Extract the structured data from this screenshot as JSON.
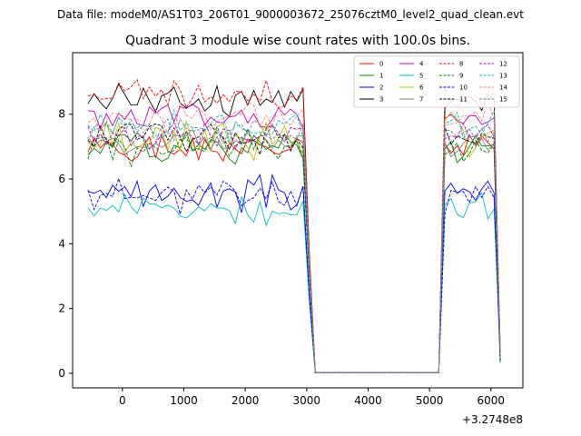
{
  "chart_data": {
    "type": "line",
    "suptitle": "Data file: modeM0/AS1T03_206T01_9000003672_25076cztM0_level2_quad_clean.evt",
    "title": "Quadrant 3 module wise count rates with 100.0s bins.",
    "xlabel": "",
    "ylabel": "",
    "offset_text": "+3.2748e8",
    "xlim": [
      -810,
      6520
    ],
    "ylim": [
      -0.45,
      9.9
    ],
    "x_ticks": [
      0,
      1000,
      2000,
      3000,
      4000,
      5000,
      6000
    ],
    "y_ticks": [
      0,
      2,
      4,
      6,
      8
    ],
    "legend_position": "top-right",
    "x_start": -560,
    "x_step": 100,
    "gap_start": 3140,
    "gap_end": 5150,
    "series": [
      {
        "name": "0",
        "color": "#ff0000",
        "dash": "solid",
        "base": 6.9,
        "amp": 0.25,
        "seed": 1
      },
      {
        "name": "1",
        "color": "#008000",
        "dash": "solid",
        "base": 7.05,
        "amp": 0.35,
        "seed": 2
      },
      {
        "name": "2",
        "color": "#0000ff",
        "dash": "solid",
        "base": 5.55,
        "amp": 0.35,
        "seed": 3
      },
      {
        "name": "3",
        "color": "#000000",
        "dash": "solid",
        "base": 8.5,
        "amp": 0.35,
        "seed": 4
      },
      {
        "name": "4",
        "color": "#bf00bf",
        "dash": "solid",
        "base": 7.9,
        "amp": 0.25,
        "seed": 5
      },
      {
        "name": "5",
        "color": "#00bfbf",
        "dash": "solid",
        "base": 5.1,
        "amp": 0.25,
        "seed": 6
      },
      {
        "name": "6",
        "color": "#bfbf00",
        "dash": "solid",
        "base": 7.3,
        "amp": 0.55,
        "seed": 7
      },
      {
        "name": "7",
        "color": "#808080",
        "dash": "solid",
        "base": 7.1,
        "amp": 0.25,
        "seed": 8
      },
      {
        "name": "8",
        "color": "#ff0000",
        "dash": "dashed",
        "base": 8.6,
        "amp": 0.3,
        "seed": 9
      },
      {
        "name": "9",
        "color": "#008000",
        "dash": "dashed",
        "base": 7.0,
        "amp": 0.45,
        "seed": 10
      },
      {
        "name": "10",
        "color": "#0000ff",
        "dash": "dashed",
        "base": 5.5,
        "amp": 0.35,
        "seed": 11
      },
      {
        "name": "11",
        "color": "#000000",
        "dash": "dashed",
        "base": 7.3,
        "amp": 0.3,
        "seed": 12
      },
      {
        "name": "12",
        "color": "#bf00bf",
        "dash": "dashed",
        "base": 7.35,
        "amp": 0.25,
        "seed": 13
      },
      {
        "name": "13",
        "color": "#00bfbf",
        "dash": "dashed",
        "base": 7.6,
        "amp": 0.25,
        "seed": 14
      },
      {
        "name": "14",
        "color": "#ff8080",
        "dash": "dashed",
        "base": 7.9,
        "amp": 0.3,
        "seed": 15
      },
      {
        "name": "15",
        "color": "#808080",
        "dash": "dashed",
        "base": 7.5,
        "amp": 0.25,
        "seed": 16
      }
    ]
  }
}
